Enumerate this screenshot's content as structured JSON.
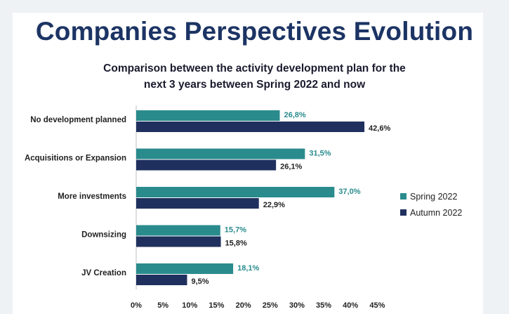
{
  "title": "Companies Perspectives Evolution",
  "subtitle": {
    "line1": "Comparison between the activity development plan for the",
    "line2": "next 3 years between Spring 2022 and now"
  },
  "colors": {
    "spring": "#2a8b8d",
    "autumn": "#20305e",
    "title": "#1c3464"
  },
  "chart_data": {
    "type": "bar",
    "orientation": "horizontal",
    "categories": [
      "No development planned",
      "Acquisitions or Expansion",
      "More investments",
      "Downsizing",
      "JV Creation"
    ],
    "series": [
      {
        "name": "Spring 2022",
        "values": [
          26.8,
          31.5,
          37.0,
          15.7,
          18.1
        ],
        "labels": [
          "26,8%",
          "31,5%",
          "37,0%",
          "15,7%",
          "18,1%"
        ]
      },
      {
        "name": "Autumn 2022",
        "values": [
          42.6,
          26.1,
          22.9,
          15.8,
          9.5
        ],
        "labels": [
          "42,6%",
          "26,1%",
          "22,9%",
          "15,8%",
          "9,5%"
        ]
      }
    ],
    "xlim": [
      0,
      45
    ],
    "xticks": [
      "0%",
      "5%",
      "10%",
      "15%",
      "20%",
      "25%",
      "30%",
      "35%",
      "40%",
      "45%"
    ],
    "grid": false,
    "legend": "right"
  }
}
